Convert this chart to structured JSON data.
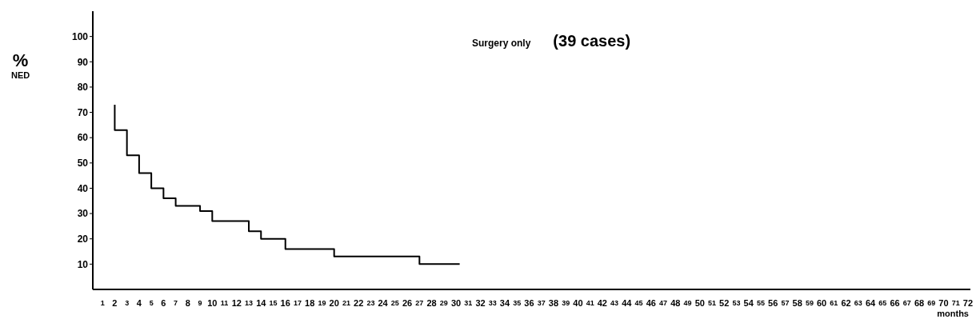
{
  "chart_data": {
    "type": "step",
    "title": "Surgery only",
    "subtitle": "(39 cases)",
    "ylabel": "% NED",
    "xlabel": "months",
    "x": [
      2,
      2,
      3,
      4,
      5,
      6,
      7,
      9,
      10,
      13,
      14,
      16,
      20,
      27,
      30.3
    ],
    "series": [
      {
        "color": "#000000",
        "values": [
          73,
          63,
          53,
          46,
          40,
          36,
          33,
          31,
          27,
          23,
          20,
          16,
          13,
          10,
          10
        ]
      }
    ],
    "xlim": [
      0.2,
      72.2
    ],
    "xticks": [
      1,
      2,
      3,
      4,
      5,
      6,
      7,
      8,
      9,
      10,
      11,
      12,
      13,
      14,
      15,
      16,
      17,
      18,
      19,
      20,
      21,
      22,
      23,
      24,
      25,
      26,
      27,
      28,
      29,
      30,
      31,
      32,
      33,
      34,
      35,
      36,
      37,
      38,
      39,
      40,
      41,
      42,
      43,
      44,
      45,
      46,
      47,
      48,
      49,
      50,
      51,
      52,
      53,
      54,
      55,
      56,
      57,
      58,
      59,
      60,
      61,
      62,
      63,
      64,
      65,
      66,
      67,
      68,
      69,
      70,
      71,
      72
    ],
    "ylim": [
      0,
      110
    ],
    "yticks": [
      10,
      20,
      30,
      40,
      50,
      60,
      70,
      80,
      90,
      100
    ],
    "grid": false,
    "legend": false,
    "marker": "none",
    "line_style": "solid"
  }
}
